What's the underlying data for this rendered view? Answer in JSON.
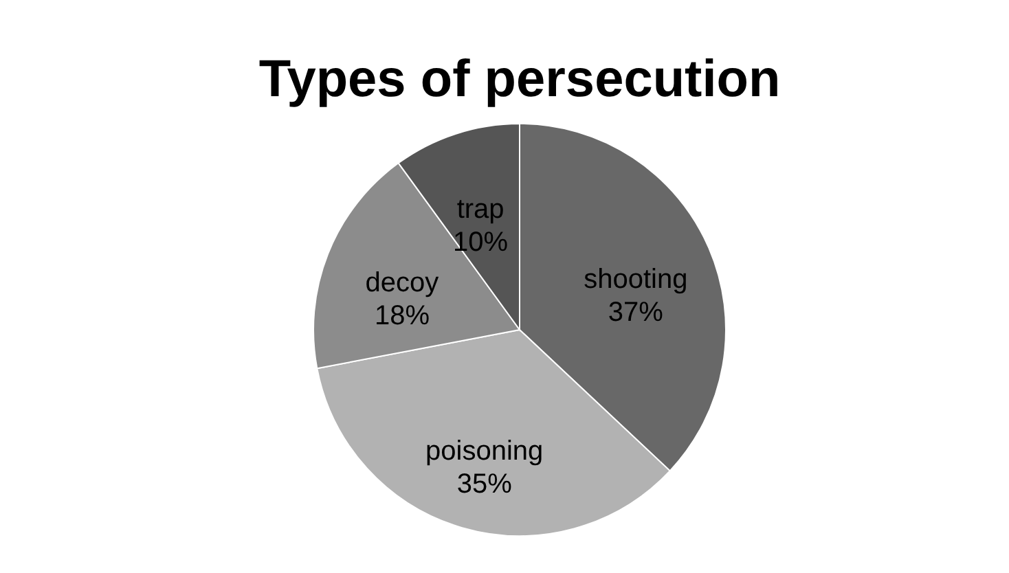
{
  "chart_data": {
    "type": "pie",
    "title": "Types of persecution",
    "categories": [
      "shooting",
      "poisoning",
      "decoy",
      "trap"
    ],
    "values": [
      37,
      35,
      18,
      10
    ],
    "value_labels": [
      "37%",
      "35%",
      "18%",
      "10%"
    ],
    "colors": [
      "#686868",
      "#b2b2b2",
      "#8c8c8c",
      "#555555"
    ],
    "legend": false
  }
}
